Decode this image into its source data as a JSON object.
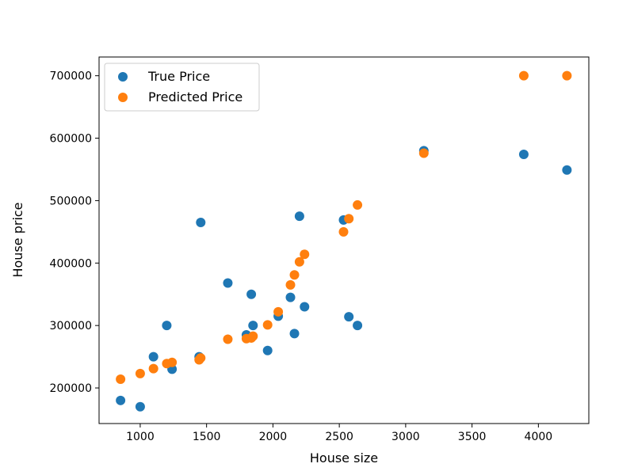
{
  "chart_data": {
    "type": "scatter",
    "title": "",
    "xlabel": "House size",
    "ylabel": "House price",
    "xlim": [
      690,
      4380
    ],
    "ylim": [
      143000,
      730000
    ],
    "xticks": [
      1000,
      1500,
      2000,
      2500,
      3000,
      3500,
      4000
    ],
    "yticks": [
      200000,
      300000,
      400000,
      500000,
      600000,
      700000
    ],
    "grid": false,
    "legend_position": "top-left",
    "series": [
      {
        "name": "True Price",
        "color": "#1f77b4",
        "points": [
          [
            852,
            180000
          ],
          [
            1000,
            170000
          ],
          [
            1100,
            250000
          ],
          [
            1200,
            300000
          ],
          [
            1240,
            230000
          ],
          [
            1444,
            250000
          ],
          [
            1456,
            465000
          ],
          [
            1660,
            368000
          ],
          [
            1800,
            285000
          ],
          [
            1837,
            350000
          ],
          [
            1850,
            300000
          ],
          [
            1960,
            260000
          ],
          [
            2040,
            315000
          ],
          [
            2132,
            345000
          ],
          [
            2162,
            287000
          ],
          [
            2200,
            475000
          ],
          [
            2238,
            330000
          ],
          [
            2532,
            469000
          ],
          [
            2572,
            314000
          ],
          [
            2637,
            300000
          ],
          [
            3137,
            580000
          ],
          [
            3890,
            574000
          ],
          [
            4215,
            549000
          ]
        ]
      },
      {
        "name": "Predicted Price",
        "color": "#ff7f0e",
        "points": [
          [
            852,
            214000
          ],
          [
            1000,
            223000
          ],
          [
            1100,
            231000
          ],
          [
            1200,
            239000
          ],
          [
            1240,
            241000
          ],
          [
            1444,
            245000
          ],
          [
            1456,
            248000
          ],
          [
            1660,
            278000
          ],
          [
            1800,
            279000
          ],
          [
            1837,
            280000
          ],
          [
            1850,
            283000
          ],
          [
            1960,
            301000
          ],
          [
            2040,
            322000
          ],
          [
            2132,
            365000
          ],
          [
            2162,
            381000
          ],
          [
            2200,
            402000
          ],
          [
            2238,
            414000
          ],
          [
            2532,
            450000
          ],
          [
            2572,
            471000
          ],
          [
            2637,
            493000
          ],
          [
            3137,
            576000
          ],
          [
            3890,
            700000
          ],
          [
            4215,
            700000
          ]
        ]
      }
    ]
  }
}
